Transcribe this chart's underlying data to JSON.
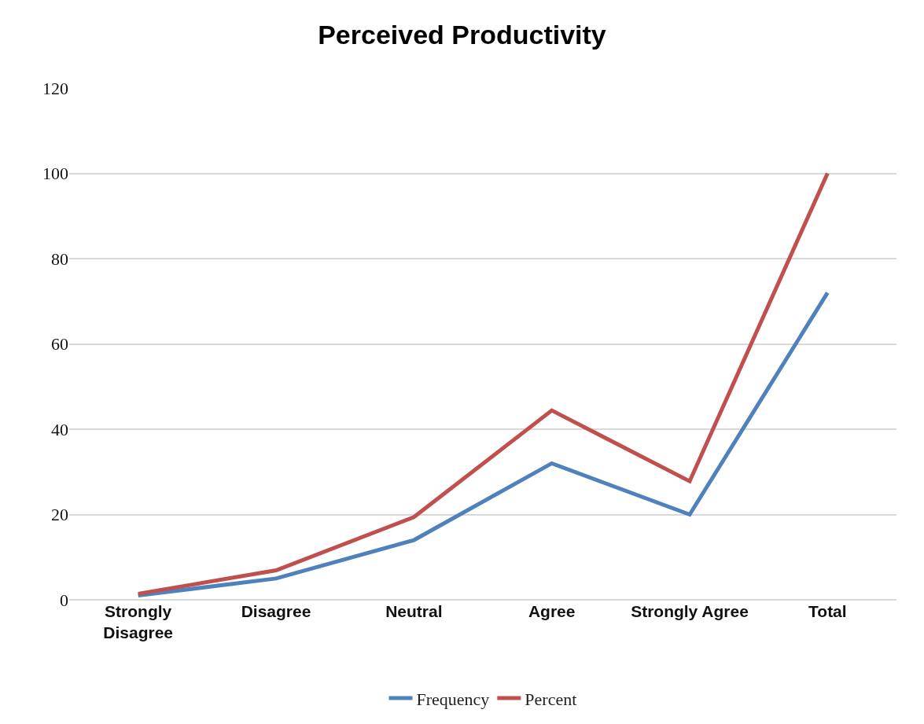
{
  "chart_data": {
    "type": "line",
    "title": "Perceived Productivity",
    "categories": [
      "Strongly Disagree",
      "Disagree",
      "Neutral",
      "Agree",
      "Strongly Agree",
      "Total"
    ],
    "series": [
      {
        "name": "Frequency",
        "color": "#4f81bd",
        "values": [
          1,
          5,
          14,
          32,
          20,
          72
        ]
      },
      {
        "name": "Percent",
        "color": "#c0504d",
        "values": [
          1.4,
          6.9,
          19.4,
          44.4,
          27.8,
          100
        ]
      }
    ],
    "ylim": [
      0,
      120
    ],
    "yticks": [
      0,
      20,
      40,
      60,
      80,
      100,
      120
    ],
    "grid": "y",
    "legend": "bottom",
    "marker": "none",
    "line_style": "solid"
  }
}
